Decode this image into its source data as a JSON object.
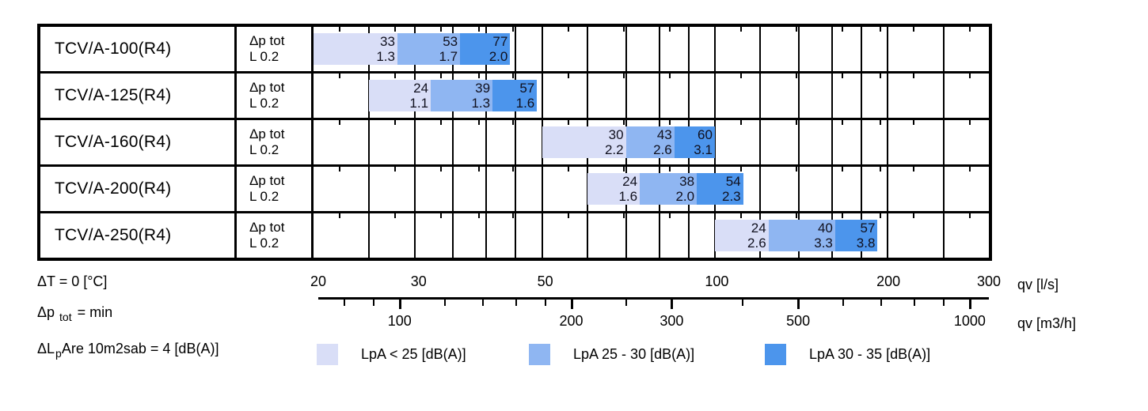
{
  "chart_data": {
    "type": "bar",
    "variant": "horizontal-range-segments",
    "x_scale": "log",
    "x_axis": {
      "primary": {
        "label": "qv [l/s]",
        "min": 20,
        "max": 300,
        "tick_labels": [
          20,
          30,
          50,
          100,
          200,
          300
        ]
      },
      "secondary": {
        "label": "qv [m3/h]",
        "tick_labels": [
          100,
          200,
          300,
          500,
          1000
        ],
        "minor_ticks": [
          80,
          90,
          100,
          120,
          140,
          160,
          180,
          200,
          250,
          300,
          400,
          500,
          600,
          700,
          800,
          900,
          1000
        ]
      }
    },
    "gridlines_qv_ls": [
      25,
      30,
      35,
      40,
      45,
      50,
      60,
      70,
      80,
      90,
      100,
      120,
      140,
      160,
      180,
      200,
      250
    ],
    "rows": [
      {
        "model": "TCV/A-100(R4)",
        "param": [
          "Δp tot",
          "L 0.2"
        ],
        "segments": [
          {
            "band": "lpa_lt_25",
            "qv_from": 20,
            "qv_to": 28,
            "label_top": "33",
            "label_bottom": "1.3"
          },
          {
            "band": "lpa_25_30",
            "qv_from": 28,
            "qv_to": 36,
            "label_top": "53",
            "label_bottom": "1.7"
          },
          {
            "band": "lpa_30_35",
            "qv_from": 36,
            "qv_to": 44,
            "label_top": "77",
            "label_bottom": "2.0"
          }
        ]
      },
      {
        "model": "TCV/A-125(R4)",
        "param": [
          "Δp tot",
          "L 0.2"
        ],
        "segments": [
          {
            "band": "lpa_lt_25",
            "qv_from": 25,
            "qv_to": 32,
            "label_top": "24",
            "label_bottom": "1.1"
          },
          {
            "band": "lpa_25_30",
            "qv_from": 32,
            "qv_to": 41,
            "label_top": "39",
            "label_bottom": "1.3"
          },
          {
            "band": "lpa_30_35",
            "qv_from": 41,
            "qv_to": 49,
            "label_top": "57",
            "label_bottom": "1.6"
          }
        ]
      },
      {
        "model": "TCV/A-160(R4)",
        "param": [
          "Δp tot",
          "L 0.2"
        ],
        "segments": [
          {
            "band": "lpa_lt_25",
            "qv_from": 50,
            "qv_to": 70,
            "label_top": "30",
            "label_bottom": "2.2"
          },
          {
            "band": "lpa_25_30",
            "qv_from": 70,
            "qv_to": 85,
            "label_top": "43",
            "label_bottom": "2.6"
          },
          {
            "band": "lpa_30_35",
            "qv_from": 85,
            "qv_to": 100,
            "label_top": "60",
            "label_bottom": "3.1"
          }
        ]
      },
      {
        "model": "TCV/A-200(R4)",
        "param": [
          "Δp tot",
          "L 0.2"
        ],
        "segments": [
          {
            "band": "lpa_lt_25",
            "qv_from": 60,
            "qv_to": 74,
            "label_top": "24",
            "label_bottom": "1.6"
          },
          {
            "band": "lpa_25_30",
            "qv_from": 74,
            "qv_to": 93,
            "label_top": "38",
            "label_bottom": "2.0"
          },
          {
            "band": "lpa_30_35",
            "qv_from": 93,
            "qv_to": 112,
            "label_top": "54",
            "label_bottom": "2.3"
          }
        ]
      },
      {
        "model": "TCV/A-250(R4)",
        "param": [
          "Δp tot",
          "L 0.2"
        ],
        "segments": [
          {
            "band": "lpa_lt_25",
            "qv_from": 100,
            "qv_to": 124,
            "label_top": "24",
            "label_bottom": "2.6"
          },
          {
            "band": "lpa_25_30",
            "qv_from": 124,
            "qv_to": 162,
            "label_top": "40",
            "label_bottom": "3.3"
          },
          {
            "band": "lpa_30_35",
            "qv_from": 162,
            "qv_to": 192,
            "label_top": "57",
            "label_bottom": "3.8"
          }
        ]
      }
    ],
    "legend": [
      {
        "band": "lpa_lt_25",
        "label": "LpA < 25 [dB(A)]",
        "color": "#d9def7"
      },
      {
        "band": "lpa_25_30",
        "label": "LpA 25 - 30 [dB(A)]",
        "color": "#8fb6f2"
      },
      {
        "band": "lpa_30_35",
        "label": "LpA 30 - 35 [dB(A)]",
        "color": "#4c95ec"
      }
    ],
    "annotations": {
      "temp": "ΔT = 0 [°C]",
      "pressure_prefix": "Δp",
      "pressure_sub": "tot",
      "pressure_suffix": " = min",
      "sound_prefix": "ΔL",
      "sound_sub": "p",
      "sound_suffix": "Are 10m2sab = 4 [dB(A)]"
    }
  }
}
